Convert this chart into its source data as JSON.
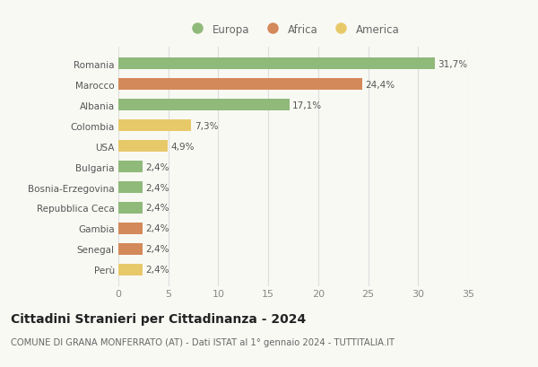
{
  "categories": [
    "Perù",
    "Senegal",
    "Gambia",
    "Repubblica Ceca",
    "Bosnia-Erzegovina",
    "Bulgaria",
    "USA",
    "Colombia",
    "Albania",
    "Marocco",
    "Romania"
  ],
  "values": [
    2.4,
    2.4,
    2.4,
    2.4,
    2.4,
    2.4,
    4.9,
    7.3,
    17.1,
    24.4,
    31.7
  ],
  "labels": [
    "2,4%",
    "2,4%",
    "2,4%",
    "2,4%",
    "2,4%",
    "2,4%",
    "4,9%",
    "7,3%",
    "17,1%",
    "24,4%",
    "31,7%"
  ],
  "colors": [
    "#e8c96a",
    "#d4895a",
    "#d4895a",
    "#8fba7a",
    "#8fba7a",
    "#8fba7a",
    "#e8c96a",
    "#e8c96a",
    "#8fba7a",
    "#d4895a",
    "#8fba7a"
  ],
  "legend_labels": [
    "Europa",
    "Africa",
    "America"
  ],
  "legend_colors": [
    "#8fba7a",
    "#d4895a",
    "#e8c96a"
  ],
  "xlim": [
    0,
    35
  ],
  "xticks": [
    0,
    5,
    10,
    15,
    20,
    25,
    30,
    35
  ],
  "title": "Cittadini Stranieri per Cittadinanza - 2024",
  "subtitle": "COMUNE DI GRANA MONFERRATO (AT) - Dati ISTAT al 1° gennaio 2024 - TUTTITALIA.IT",
  "bg_color": "#f9f9f4",
  "bar_height": 0.55,
  "label_fontsize": 7.5,
  "ytick_fontsize": 7.5,
  "xtick_fontsize": 8,
  "title_fontsize": 10,
  "subtitle_fontsize": 7.2,
  "grid_color": "#dddddd",
  "label_color": "#555555",
  "ytick_color": "#555555",
  "xtick_color": "#888888"
}
